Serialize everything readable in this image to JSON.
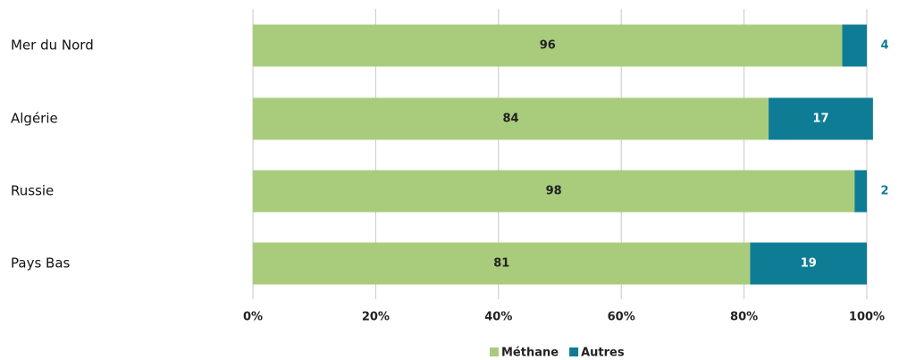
{
  "chart_data": {
    "type": "stacked-bar",
    "orientation": "horizontal",
    "categories": [
      "Mer du Nord",
      "Algérie",
      "Russie",
      "Pays Bas"
    ],
    "series": [
      {
        "name": "Méthane",
        "color": "#a9cc7c",
        "values": [
          96,
          84,
          98,
          81
        ]
      },
      {
        "name": "Autres",
        "color": "#0f7c96",
        "values": [
          4,
          17,
          2,
          19
        ]
      }
    ],
    "xlim": [
      0,
      100
    ],
    "xticks": [
      {
        "value": 0,
        "label": "0%"
      },
      {
        "value": 20,
        "label": "20%"
      },
      {
        "value": 40,
        "label": "40%"
      },
      {
        "value": 60,
        "label": "60%"
      },
      {
        "value": 80,
        "label": "80%"
      },
      {
        "value": 100,
        "label": "100%"
      }
    ],
    "grid": true,
    "legend": "bottom"
  }
}
